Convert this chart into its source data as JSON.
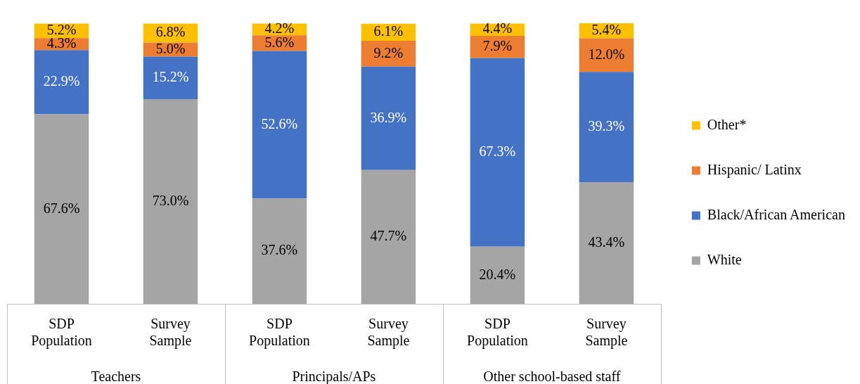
{
  "chart_data": {
    "type": "bar",
    "stacked": true,
    "legend": "right",
    "grid": false,
    "categories": [
      "SDP Population",
      "Survey Sample",
      "SDP Population",
      "Survey Sample",
      "SDP Population",
      "Survey Sample"
    ],
    "annotations": [
      "Teachers",
      "Principals/APs",
      "Other school-based staff"
    ],
    "series": [
      {
        "name": "White",
        "color": "#a5a5a5",
        "values": [
          67.6,
          73.0,
          37.6,
          47.7,
          20.4,
          43.4
        ],
        "value_labels": [
          "67.6%",
          "73.0%",
          "37.6%",
          "47.7%",
          "20.4%",
          "43.4%"
        ]
      },
      {
        "name": "Black/African American",
        "color": "#4472c4",
        "values": [
          22.9,
          15.2,
          52.6,
          36.9,
          67.3,
          39.3
        ],
        "value_labels": [
          "22.9%",
          "15.2%",
          "52.6%",
          "36.9%",
          "67.3%",
          "39.3%"
        ]
      },
      {
        "name": "Hispanic/ Latinx",
        "color": "#ed7d31",
        "values": [
          4.3,
          5.0,
          5.6,
          9.2,
          7.9,
          12.0
        ],
        "value_labels": [
          "4.3%",
          "5.0%",
          "5.6%",
          "9.2%",
          "7.9%",
          "12.0%"
        ]
      },
      {
        "name": "Other*",
        "color": "#ffc000",
        "values": [
          5.2,
          6.8,
          4.2,
          6.1,
          4.4,
          5.4
        ],
        "value_labels": [
          "5.2%",
          "6.8%",
          "4.2%",
          "6.1%",
          "4.4%",
          "5.4%"
        ]
      }
    ]
  }
}
